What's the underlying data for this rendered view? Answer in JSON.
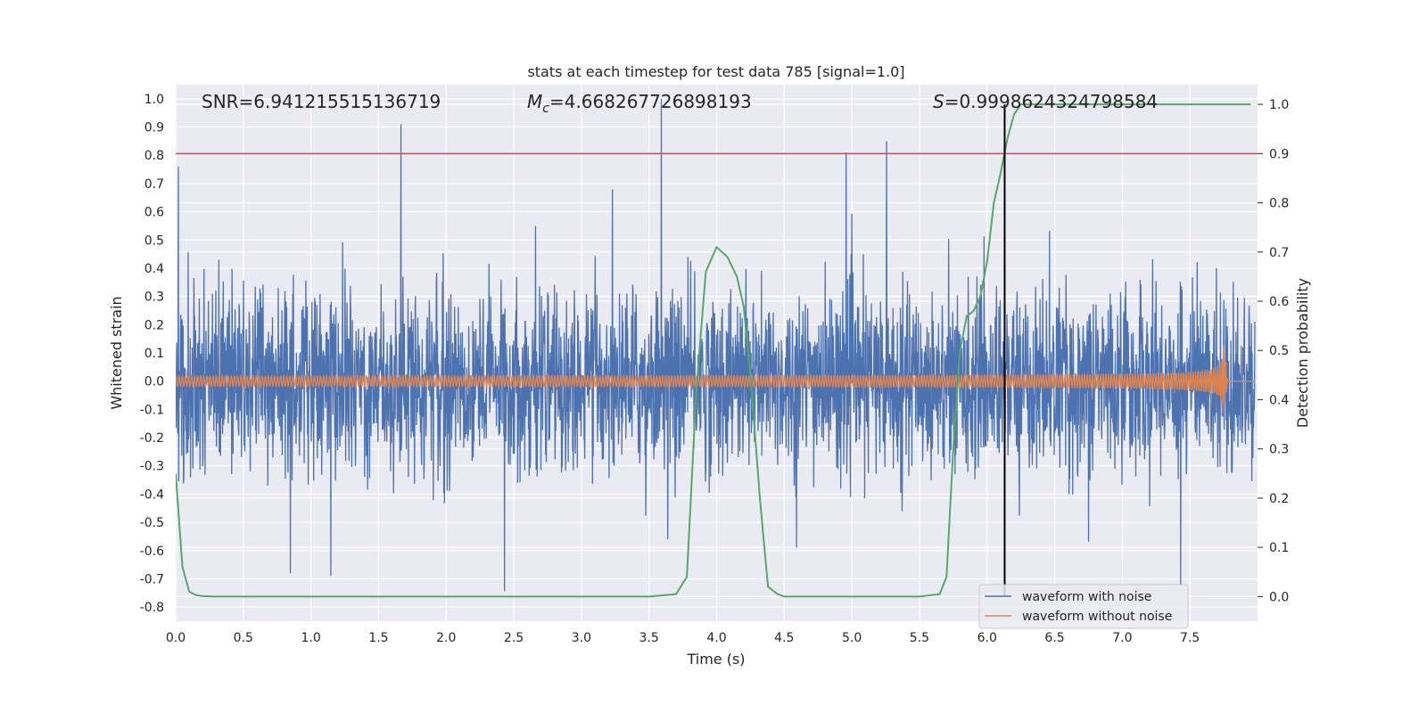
{
  "chart_data": {
    "type": "line",
    "title": "stats at each timestep for test data 785 [signal=1.0]",
    "xlabel": "Time (s)",
    "ylabel_left": "Whitened strain",
    "ylabel_right": "Detection probability",
    "xlim": [
      0.0,
      8.0
    ],
    "ylim_left": [
      -0.85,
      1.05
    ],
    "ylim_right": [
      -0.05,
      1.04
    ],
    "x_ticks": [
      "0.0",
      "0.5",
      "1.0",
      "1.5",
      "2.0",
      "2.5",
      "3.0",
      "3.5",
      "4.0",
      "4.5",
      "5.0",
      "5.5",
      "6.0",
      "6.5",
      "7.0",
      "7.5"
    ],
    "y_ticks_left": [
      "-0.8",
      "-0.7",
      "-0.6",
      "-0.5",
      "-0.4",
      "-0.3",
      "-0.2",
      "-0.1",
      "0.0",
      "0.1",
      "0.2",
      "0.3",
      "0.4",
      "0.5",
      "0.6",
      "0.7",
      "0.8",
      "0.9",
      "1.0"
    ],
    "y_ticks_right": [
      "0.0",
      "0.1",
      "0.2",
      "0.3",
      "0.4",
      "0.5",
      "0.6",
      "0.7",
      "0.8",
      "0.9",
      "1.0"
    ],
    "grid": true,
    "legend_position": "lower-right",
    "annotations": {
      "snr": "SNR=6.941215515136719",
      "mc_symbol": "M",
      "mc_subscript": "c",
      "mc_value": "=4.668267726898193",
      "s_symbol": "S",
      "s_value": "=0.9998624324798584"
    },
    "threshold_line": {
      "y_right": 0.9,
      "color": "#c44e52"
    },
    "vertical_marker": {
      "x": 6.13,
      "color": "#000000"
    },
    "series": [
      {
        "name": "waveform with noise",
        "color": "#4c72b0",
        "axis": "left",
        "noise_amplitude": 0.25,
        "peaks": [
          [
            0.02,
            0.76
          ],
          [
            1.67,
            0.91
          ],
          [
            3.6,
            1.0
          ],
          [
            5.27,
            0.85
          ],
          [
            4.97,
            0.81
          ],
          [
            7.45,
            -0.72
          ],
          [
            0.85,
            -0.68
          ],
          [
            1.15,
            -0.69
          ]
        ]
      },
      {
        "name": "waveform without noise",
        "color": "#dd8452",
        "axis": "left",
        "chirp_start_amplitude": 0.015,
        "chirp_peak_time": 7.75,
        "chirp_peak_amplitude": 0.15,
        "chirp_end_time": 7.78
      },
      {
        "name": "detection probability",
        "color": "#55a868",
        "axis": "right",
        "x": [
          0.0,
          0.05,
          0.1,
          0.15,
          0.2,
          0.3,
          0.5,
          1.0,
          2.0,
          3.0,
          3.5,
          3.7,
          3.78,
          3.85,
          3.92,
          4.0,
          4.08,
          4.15,
          4.2,
          4.25,
          4.32,
          4.38,
          4.45,
          4.5,
          5.0,
          5.5,
          5.65,
          5.7,
          5.75,
          5.8,
          5.85,
          5.9,
          5.95,
          6.0,
          6.05,
          6.1,
          6.15,
          6.2,
          6.25,
          7.0,
          7.95
        ],
        "y": [
          0.25,
          0.06,
          0.01,
          0.003,
          0.001,
          0.0,
          0.0,
          0.0,
          0.0,
          0.0,
          0.0,
          0.005,
          0.04,
          0.42,
          0.66,
          0.71,
          0.69,
          0.65,
          0.59,
          0.45,
          0.2,
          0.02,
          0.005,
          0.0,
          0.0,
          0.0,
          0.005,
          0.04,
          0.3,
          0.5,
          0.57,
          0.58,
          0.61,
          0.68,
          0.8,
          0.86,
          0.93,
          0.98,
          1.0,
          1.0,
          1.0
        ]
      }
    ]
  }
}
